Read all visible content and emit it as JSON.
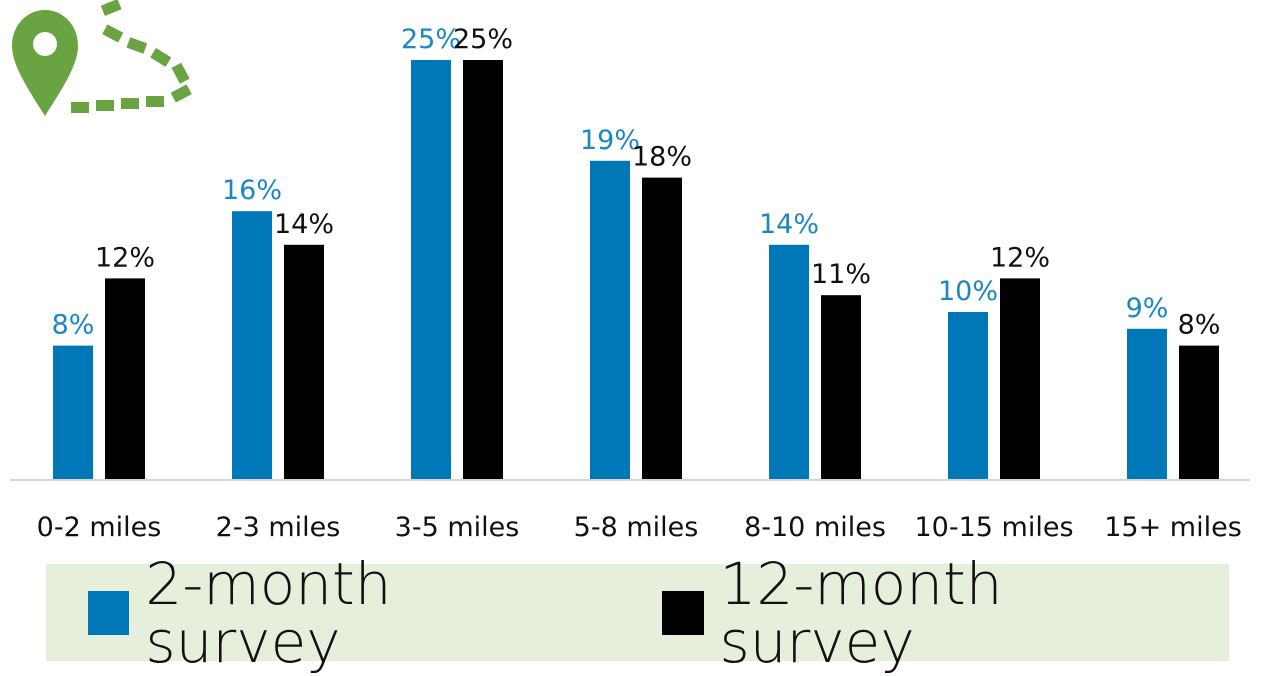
{
  "chart_data": {
    "type": "bar",
    "categories": [
      "0-2 miles",
      "2-3 miles",
      "3-5 miles",
      "5-8 miles",
      "8-10 miles",
      "10-15 miles",
      "15+ miles"
    ],
    "series": [
      {
        "name": "2-month survey",
        "values": [
          8,
          16,
          25,
          19,
          14,
          10,
          9
        ],
        "labels": [
          "8%",
          "16%",
          "25%",
          "19%",
          "14%",
          "10%",
          "9%"
        ],
        "color": "#0077b6"
      },
      {
        "name": "12-month survey",
        "values": [
          12,
          14,
          25,
          18,
          11,
          12,
          8
        ],
        "labels": [
          "12%",
          "14%",
          "25%",
          "18%",
          "11%",
          "12%",
          "8%"
        ],
        "color": "#000000"
      }
    ],
    "ylim": [
      0,
      25
    ],
    "grid": false,
    "legend_position": "bottom",
    "value_label_colors": [
      "#1d86c4",
      "#111111"
    ],
    "icon": "map-pin-with-dashed-path-icon",
    "icon_color": "#6aa342"
  }
}
